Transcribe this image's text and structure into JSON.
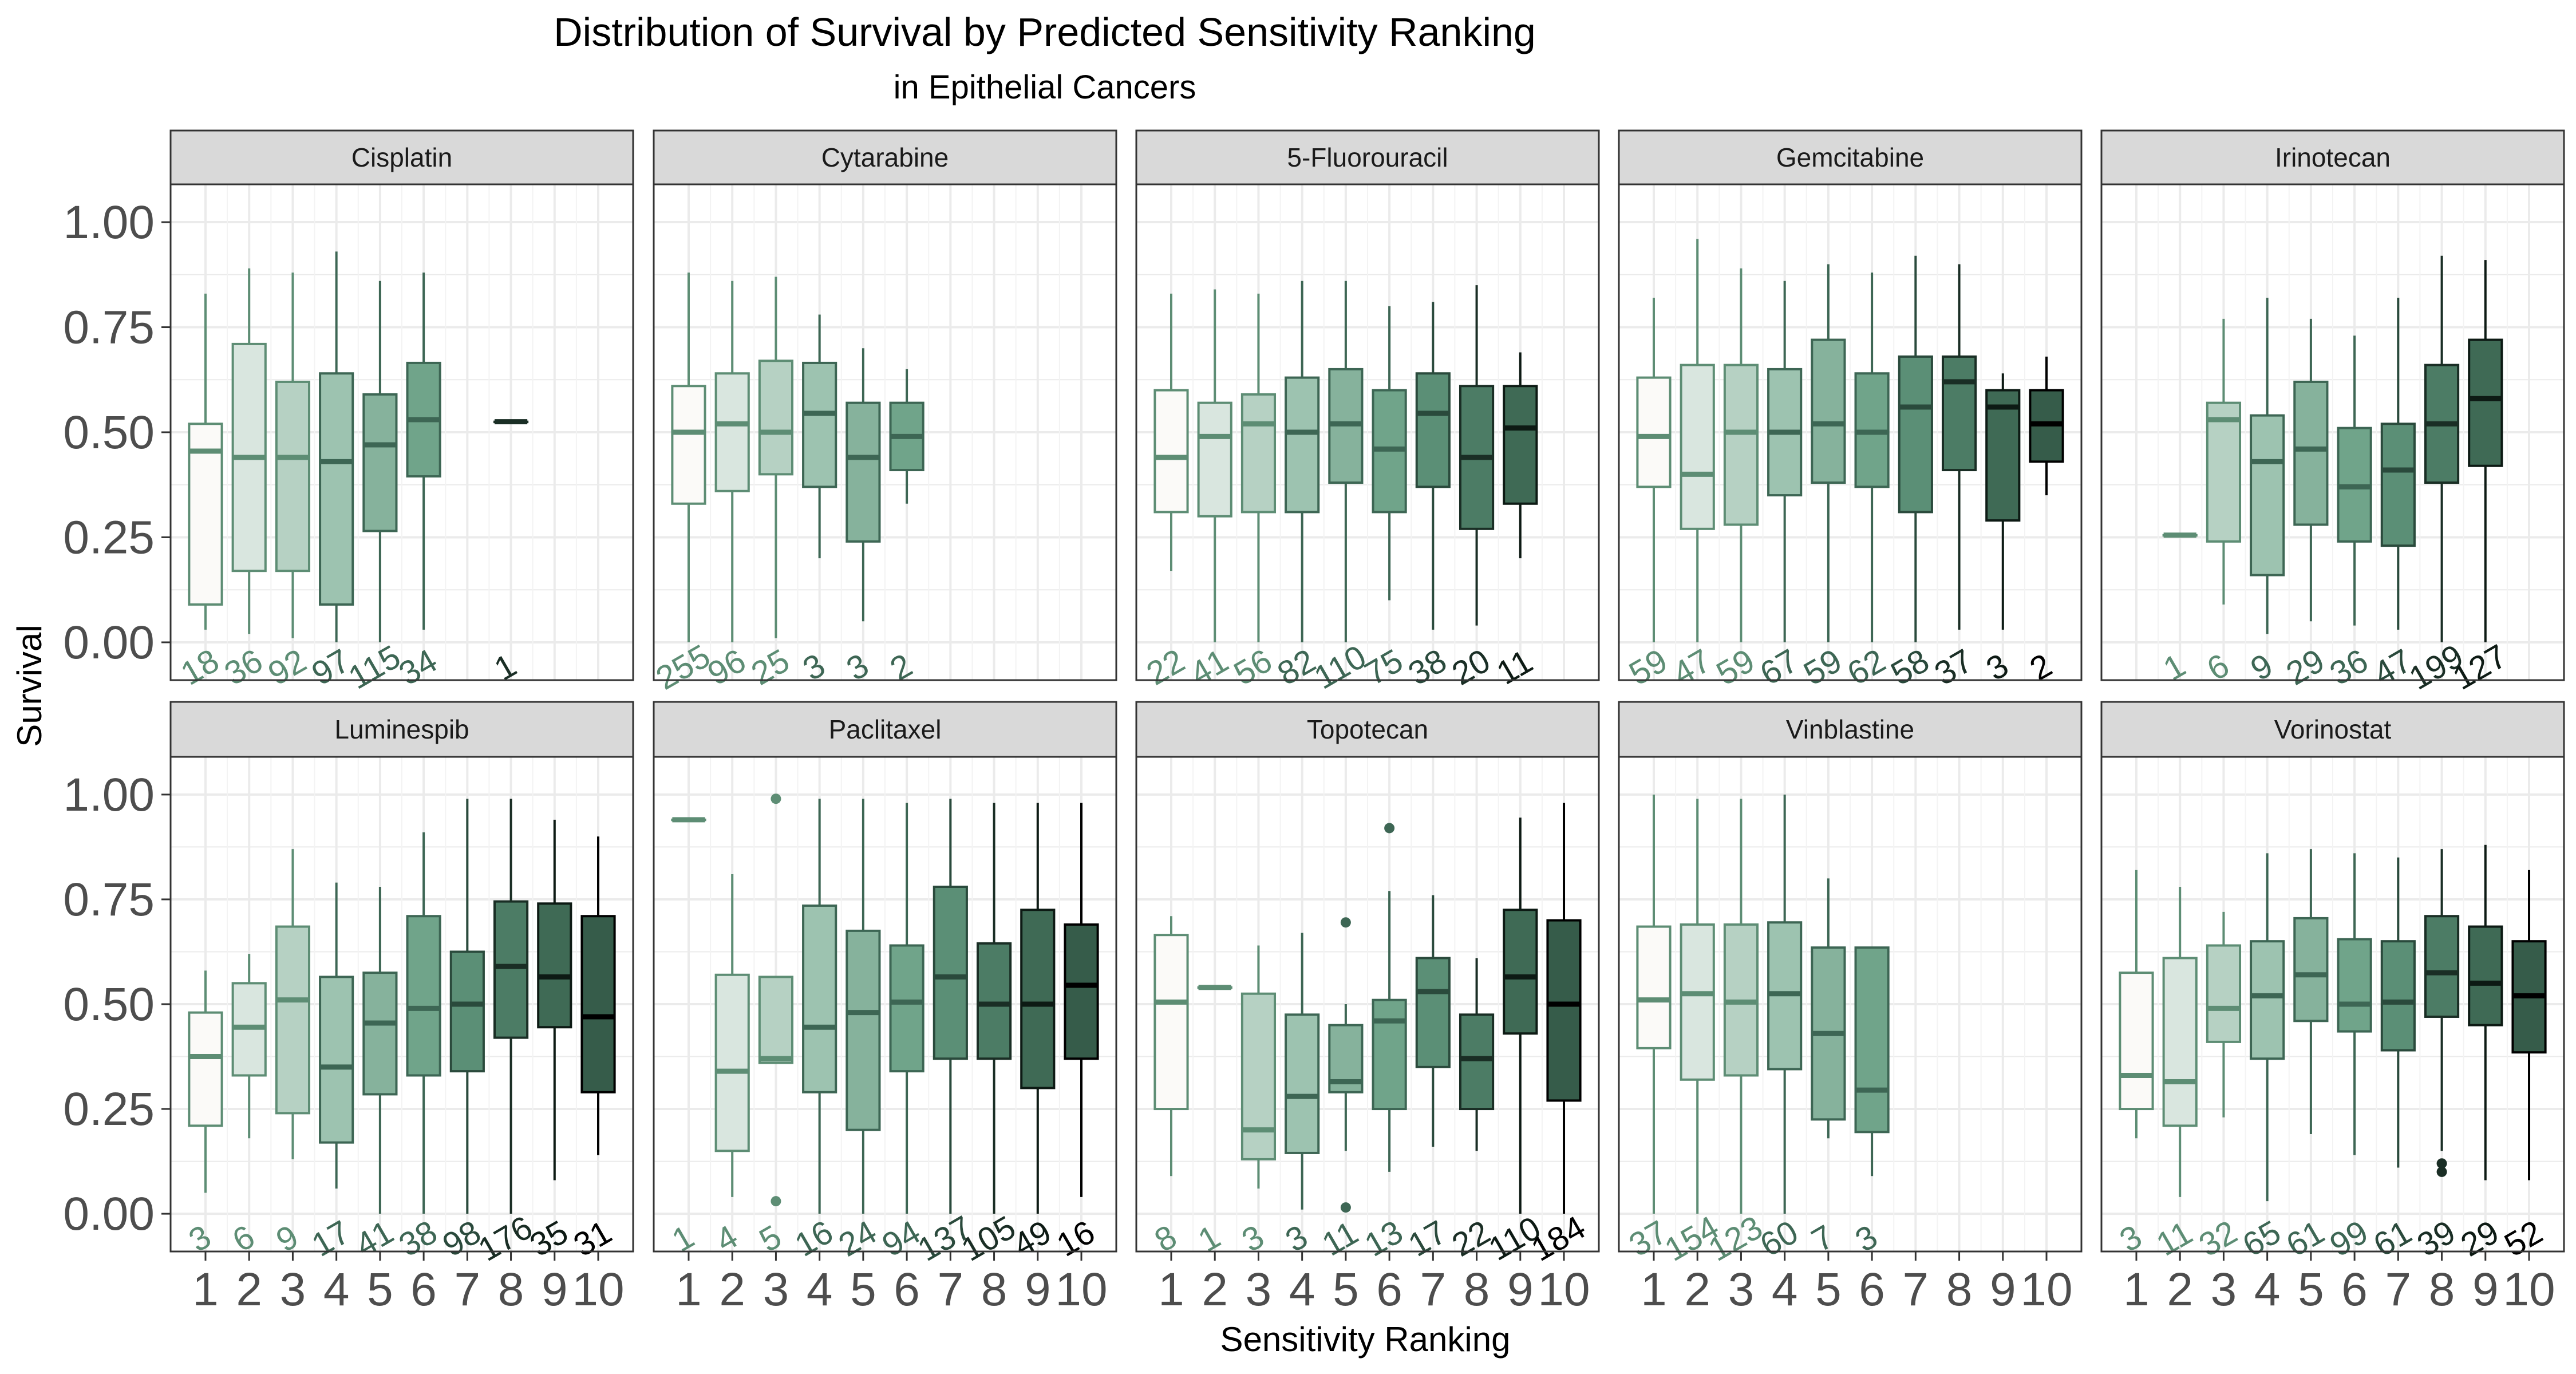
{
  "chart_data": {
    "type": "boxplot",
    "title": "Distribution of Survival by Predicted Sensitivity Ranking",
    "subtitle": "in Epithelial Cancers",
    "xlabel": "Sensitivity Ranking",
    "ylabel": "Survival",
    "x_categories": [
      "1",
      "2",
      "3",
      "4",
      "5",
      "6",
      "7",
      "8",
      "9",
      "10"
    ],
    "y_ticks": [
      "0.00",
      "0.25",
      "0.50",
      "0.75",
      "1.00"
    ],
    "ylim": [
      -0.09,
      1.09
    ],
    "grid": true,
    "legend": "none",
    "fill_scale": [
      "#fbfaf8",
      "#d9e6df",
      "#b6d1c3",
      "#9dc3b0",
      "#86b29c",
      "#70a48a",
      "#5b8f76",
      "#4c7c65",
      "#3f6a55",
      "#365c4a"
    ],
    "line_scale": [
      "#5d8d74",
      "#5d8d74",
      "#5d8d74",
      "#3d6654",
      "#3d6654",
      "#3d6654",
      "#2a4a3c",
      "#1a2e25",
      "#0d1a14",
      "#000000"
    ],
    "panels": [
      {
        "name": "Cisplatin",
        "boxes": [
          {
            "rank": 1,
            "min": 0.03,
            "q1": 0.09,
            "median": 0.455,
            "q3": 0.52,
            "max": 0.83,
            "n": 18
          },
          {
            "rank": 2,
            "min": 0.02,
            "q1": 0.17,
            "median": 0.44,
            "q3": 0.71,
            "max": 0.89,
            "n": 36
          },
          {
            "rank": 3,
            "min": 0.01,
            "q1": 0.17,
            "median": 0.44,
            "q3": 0.62,
            "max": 0.88,
            "n": 92
          },
          {
            "rank": 4,
            "min": 0.0,
            "q1": 0.09,
            "median": 0.43,
            "q3": 0.64,
            "max": 0.93,
            "n": 97
          },
          {
            "rank": 5,
            "min": 0.0,
            "q1": 0.265,
            "median": 0.47,
            "q3": 0.59,
            "max": 0.86,
            "n": 115
          },
          {
            "rank": 6,
            "min": 0.03,
            "q1": 0.395,
            "median": 0.53,
            "q3": 0.665,
            "max": 0.88,
            "n": 34
          },
          {
            "rank": 8,
            "min": 0.525,
            "q1": 0.525,
            "median": 0.525,
            "q3": 0.525,
            "max": 0.525,
            "n": 1
          }
        ]
      },
      {
        "name": "Cytarabine",
        "boxes": [
          {
            "rank": 1,
            "min": 0.0,
            "q1": 0.33,
            "median": 0.5,
            "q3": 0.61,
            "max": 0.88,
            "n": 255
          },
          {
            "rank": 2,
            "min": 0.0,
            "q1": 0.36,
            "median": 0.52,
            "q3": 0.64,
            "max": 0.86,
            "n": 96
          },
          {
            "rank": 3,
            "min": 0.01,
            "q1": 0.4,
            "median": 0.5,
            "q3": 0.67,
            "max": 0.87,
            "n": 25
          },
          {
            "rank": 4,
            "min": 0.2,
            "q1": 0.37,
            "median": 0.545,
            "q3": 0.665,
            "max": 0.78,
            "n": 3
          },
          {
            "rank": 5,
            "min": 0.05,
            "q1": 0.24,
            "median": 0.44,
            "q3": 0.57,
            "max": 0.7,
            "n": 3
          },
          {
            "rank": 6,
            "min": 0.33,
            "q1": 0.41,
            "median": 0.49,
            "q3": 0.57,
            "max": 0.65,
            "n": 2
          }
        ]
      },
      {
        "name": "5-Fluorouracil",
        "boxes": [
          {
            "rank": 1,
            "min": 0.17,
            "q1": 0.31,
            "median": 0.44,
            "q3": 0.6,
            "max": 0.83,
            "n": 22
          },
          {
            "rank": 2,
            "min": 0.0,
            "q1": 0.3,
            "median": 0.49,
            "q3": 0.57,
            "max": 0.84,
            "n": 41
          },
          {
            "rank": 3,
            "min": 0.0,
            "q1": 0.31,
            "median": 0.52,
            "q3": 0.59,
            "max": 0.83,
            "n": 56
          },
          {
            "rank": 4,
            "min": 0.0,
            "q1": 0.31,
            "median": 0.5,
            "q3": 0.63,
            "max": 0.86,
            "n": 82
          },
          {
            "rank": 5,
            "min": 0.0,
            "q1": 0.38,
            "median": 0.52,
            "q3": 0.65,
            "max": 0.86,
            "n": 110
          },
          {
            "rank": 6,
            "min": 0.1,
            "q1": 0.31,
            "median": 0.46,
            "q3": 0.6,
            "max": 0.8,
            "n": 75
          },
          {
            "rank": 7,
            "min": 0.03,
            "q1": 0.37,
            "median": 0.545,
            "q3": 0.64,
            "max": 0.81,
            "n": 38
          },
          {
            "rank": 8,
            "min": 0.04,
            "q1": 0.27,
            "median": 0.44,
            "q3": 0.61,
            "max": 0.85,
            "n": 20
          },
          {
            "rank": 9,
            "min": 0.2,
            "q1": 0.33,
            "median": 0.51,
            "q3": 0.61,
            "max": 0.69,
            "n": 11
          }
        ]
      },
      {
        "name": "Gemcitabine",
        "boxes": [
          {
            "rank": 1,
            "min": 0.0,
            "q1": 0.37,
            "median": 0.49,
            "q3": 0.63,
            "max": 0.82,
            "n": 59
          },
          {
            "rank": 2,
            "min": 0.0,
            "q1": 0.27,
            "median": 0.4,
            "q3": 0.66,
            "max": 0.96,
            "n": 47
          },
          {
            "rank": 3,
            "min": 0.0,
            "q1": 0.28,
            "median": 0.5,
            "q3": 0.66,
            "max": 0.89,
            "n": 59
          },
          {
            "rank": 4,
            "min": 0.0,
            "q1": 0.35,
            "median": 0.5,
            "q3": 0.65,
            "max": 0.86,
            "n": 67
          },
          {
            "rank": 5,
            "min": 0.0,
            "q1": 0.38,
            "median": 0.52,
            "q3": 0.72,
            "max": 0.9,
            "n": 59
          },
          {
            "rank": 6,
            "min": 0.0,
            "q1": 0.37,
            "median": 0.5,
            "q3": 0.64,
            "max": 0.88,
            "n": 62
          },
          {
            "rank": 7,
            "min": 0.0,
            "q1": 0.31,
            "median": 0.56,
            "q3": 0.68,
            "max": 0.92,
            "n": 58
          },
          {
            "rank": 8,
            "min": 0.03,
            "q1": 0.41,
            "median": 0.62,
            "q3": 0.68,
            "max": 0.9,
            "n": 37
          },
          {
            "rank": 9,
            "min": 0.03,
            "q1": 0.29,
            "median": 0.56,
            "q3": 0.6,
            "max": 0.64,
            "n": 3
          },
          {
            "rank": 10,
            "min": 0.35,
            "q1": 0.43,
            "median": 0.52,
            "q3": 0.6,
            "max": 0.68,
            "n": 2
          }
        ]
      },
      {
        "name": "Irinotecan",
        "boxes": [
          {
            "rank": 2,
            "min": 0.255,
            "q1": 0.255,
            "median": 0.255,
            "q3": 0.255,
            "max": 0.255,
            "n": 1
          },
          {
            "rank": 3,
            "min": 0.09,
            "q1": 0.24,
            "median": 0.53,
            "q3": 0.57,
            "max": 0.77,
            "n": 6
          },
          {
            "rank": 4,
            "min": 0.02,
            "q1": 0.16,
            "median": 0.43,
            "q3": 0.54,
            "max": 0.82,
            "n": 9
          },
          {
            "rank": 5,
            "min": 0.05,
            "q1": 0.28,
            "median": 0.46,
            "q3": 0.62,
            "max": 0.77,
            "n": 29
          },
          {
            "rank": 6,
            "min": 0.04,
            "q1": 0.24,
            "median": 0.37,
            "q3": 0.51,
            "max": 0.73,
            "n": 36
          },
          {
            "rank": 7,
            "min": 0.03,
            "q1": 0.23,
            "median": 0.41,
            "q3": 0.52,
            "max": 0.82,
            "n": 47
          },
          {
            "rank": 8,
            "min": 0.0,
            "q1": 0.38,
            "median": 0.52,
            "q3": 0.66,
            "max": 0.92,
            "n": 199
          },
          {
            "rank": 9,
            "min": 0.0,
            "q1": 0.42,
            "median": 0.58,
            "q3": 0.72,
            "max": 0.91,
            "n": 127
          }
        ]
      },
      {
        "name": "Luminespib",
        "boxes": [
          {
            "rank": 1,
            "min": 0.05,
            "q1": 0.21,
            "median": 0.375,
            "q3": 0.48,
            "max": 0.58,
            "n": 3
          },
          {
            "rank": 2,
            "min": 0.18,
            "q1": 0.33,
            "median": 0.445,
            "q3": 0.55,
            "max": 0.62,
            "n": 6
          },
          {
            "rank": 3,
            "min": 0.13,
            "q1": 0.24,
            "median": 0.51,
            "q3": 0.685,
            "max": 0.87,
            "n": 9
          },
          {
            "rank": 4,
            "min": 0.06,
            "q1": 0.17,
            "median": 0.35,
            "q3": 0.565,
            "max": 0.79,
            "n": 17
          },
          {
            "rank": 5,
            "min": 0.0,
            "q1": 0.285,
            "median": 0.455,
            "q3": 0.575,
            "max": 0.78,
            "n": 41
          },
          {
            "rank": 6,
            "min": 0.0,
            "q1": 0.33,
            "median": 0.49,
            "q3": 0.71,
            "max": 0.91,
            "n": 38
          },
          {
            "rank": 7,
            "min": 0.0,
            "q1": 0.34,
            "median": 0.5,
            "q3": 0.625,
            "max": 0.99,
            "n": 98
          },
          {
            "rank": 8,
            "min": 0.0,
            "q1": 0.42,
            "median": 0.59,
            "q3": 0.745,
            "max": 0.99,
            "n": 176
          },
          {
            "rank": 9,
            "min": 0.08,
            "q1": 0.445,
            "median": 0.565,
            "q3": 0.74,
            "max": 0.94,
            "n": 35
          },
          {
            "rank": 10,
            "min": 0.14,
            "q1": 0.29,
            "median": 0.47,
            "q3": 0.71,
            "max": 0.9,
            "n": 31
          }
        ]
      },
      {
        "name": "Paclitaxel",
        "boxes": [
          {
            "rank": 1,
            "min": 0.94,
            "q1": 0.94,
            "median": 0.94,
            "q3": 0.94,
            "max": 0.94,
            "n": 1
          },
          {
            "rank": 2,
            "min": 0.04,
            "q1": 0.15,
            "median": 0.34,
            "q3": 0.57,
            "max": 0.81,
            "n": 4
          },
          {
            "rank": 3,
            "min": 0.36,
            "q1": 0.36,
            "median": 0.37,
            "q3": 0.565,
            "max": 0.565,
            "n": 5,
            "outliers": [
              0.99,
              0.03
            ]
          },
          {
            "rank": 4,
            "min": 0.0,
            "q1": 0.29,
            "median": 0.445,
            "q3": 0.735,
            "max": 0.99,
            "n": 16
          },
          {
            "rank": 5,
            "min": 0.0,
            "q1": 0.2,
            "median": 0.48,
            "q3": 0.675,
            "max": 0.99,
            "n": 24
          },
          {
            "rank": 6,
            "min": 0.0,
            "q1": 0.34,
            "median": 0.505,
            "q3": 0.64,
            "max": 0.98,
            "n": 94
          },
          {
            "rank": 7,
            "min": 0.0,
            "q1": 0.37,
            "median": 0.565,
            "q3": 0.78,
            "max": 0.99,
            "n": 137
          },
          {
            "rank": 8,
            "min": 0.0,
            "q1": 0.37,
            "median": 0.5,
            "q3": 0.645,
            "max": 0.98,
            "n": 105
          },
          {
            "rank": 9,
            "min": 0.0,
            "q1": 0.3,
            "median": 0.5,
            "q3": 0.725,
            "max": 0.98,
            "n": 49
          },
          {
            "rank": 10,
            "min": 0.04,
            "q1": 0.37,
            "median": 0.545,
            "q3": 0.69,
            "max": 0.98,
            "n": 16
          }
        ]
      },
      {
        "name": "Topotecan",
        "boxes": [
          {
            "rank": 1,
            "min": 0.09,
            "q1": 0.25,
            "median": 0.505,
            "q3": 0.665,
            "max": 0.71,
            "n": 8
          },
          {
            "rank": 2,
            "min": 0.54,
            "q1": 0.54,
            "median": 0.54,
            "q3": 0.54,
            "max": 0.54,
            "n": 1
          },
          {
            "rank": 3,
            "min": 0.06,
            "q1": 0.13,
            "median": 0.2,
            "q3": 0.525,
            "max": 0.64,
            "n": 3
          },
          {
            "rank": 4,
            "min": 0.01,
            "q1": 0.145,
            "median": 0.28,
            "q3": 0.475,
            "max": 0.67,
            "n": 3
          },
          {
            "rank": 5,
            "min": 0.15,
            "q1": 0.29,
            "median": 0.315,
            "q3": 0.45,
            "max": 0.5,
            "n": 11,
            "outliers": [
              0.695,
              0.015
            ]
          },
          {
            "rank": 6,
            "min": 0.1,
            "q1": 0.25,
            "median": 0.46,
            "q3": 0.51,
            "max": 0.77,
            "n": 13,
            "outliers": [
              0.92
            ]
          },
          {
            "rank": 7,
            "min": 0.16,
            "q1": 0.35,
            "median": 0.53,
            "q3": 0.61,
            "max": 0.76,
            "n": 17
          },
          {
            "rank": 8,
            "min": 0.15,
            "q1": 0.25,
            "median": 0.37,
            "q3": 0.475,
            "max": 0.61,
            "n": 22
          },
          {
            "rank": 9,
            "min": 0.0,
            "q1": 0.43,
            "median": 0.565,
            "q3": 0.725,
            "max": 0.945,
            "n": 110
          },
          {
            "rank": 10,
            "min": 0.0,
            "q1": 0.27,
            "median": 0.5,
            "q3": 0.7,
            "max": 0.98,
            "n": 184
          }
        ]
      },
      {
        "name": "Vinblastine",
        "boxes": [
          {
            "rank": 1,
            "min": 0.0,
            "q1": 0.395,
            "median": 0.51,
            "q3": 0.685,
            "max": 1.0,
            "n": 37
          },
          {
            "rank": 2,
            "min": 0.0,
            "q1": 0.32,
            "median": 0.525,
            "q3": 0.69,
            "max": 0.99,
            "n": 154
          },
          {
            "rank": 3,
            "min": 0.0,
            "q1": 0.33,
            "median": 0.505,
            "q3": 0.69,
            "max": 0.99,
            "n": 123
          },
          {
            "rank": 4,
            "min": 0.0,
            "q1": 0.345,
            "median": 0.525,
            "q3": 0.695,
            "max": 1.0,
            "n": 60
          },
          {
            "rank": 5,
            "min": 0.18,
            "q1": 0.225,
            "median": 0.43,
            "q3": 0.635,
            "max": 0.8,
            "n": 7
          },
          {
            "rank": 6,
            "min": 0.09,
            "q1": 0.195,
            "median": 0.295,
            "q3": 0.635,
            "max": 0.635,
            "n": 3
          }
        ]
      },
      {
        "name": "Vorinostat",
        "boxes": [
          {
            "rank": 1,
            "min": 0.18,
            "q1": 0.25,
            "median": 0.33,
            "q3": 0.575,
            "max": 0.82,
            "n": 3
          },
          {
            "rank": 2,
            "min": 0.04,
            "q1": 0.21,
            "median": 0.315,
            "q3": 0.61,
            "max": 0.78,
            "n": 11
          },
          {
            "rank": 3,
            "min": 0.23,
            "q1": 0.41,
            "median": 0.49,
            "q3": 0.64,
            "max": 0.72,
            "n": 32
          },
          {
            "rank": 4,
            "min": 0.03,
            "q1": 0.37,
            "median": 0.52,
            "q3": 0.65,
            "max": 0.86,
            "n": 65
          },
          {
            "rank": 5,
            "min": 0.19,
            "q1": 0.46,
            "median": 0.57,
            "q3": 0.705,
            "max": 0.87,
            "n": 61
          },
          {
            "rank": 6,
            "min": 0.14,
            "q1": 0.435,
            "median": 0.5,
            "q3": 0.655,
            "max": 0.86,
            "n": 99
          },
          {
            "rank": 7,
            "min": 0.11,
            "q1": 0.39,
            "median": 0.505,
            "q3": 0.65,
            "max": 0.85,
            "n": 61
          },
          {
            "rank": 8,
            "min": 0.15,
            "q1": 0.47,
            "median": 0.575,
            "q3": 0.71,
            "max": 0.87,
            "n": 39,
            "outliers": [
              0.12,
              0.1
            ]
          },
          {
            "rank": 9,
            "min": 0.08,
            "q1": 0.45,
            "median": 0.55,
            "q3": 0.685,
            "max": 0.88,
            "n": 29
          },
          {
            "rank": 10,
            "min": 0.08,
            "q1": 0.385,
            "median": 0.52,
            "q3": 0.65,
            "max": 0.82,
            "n": 52
          }
        ]
      }
    ]
  }
}
